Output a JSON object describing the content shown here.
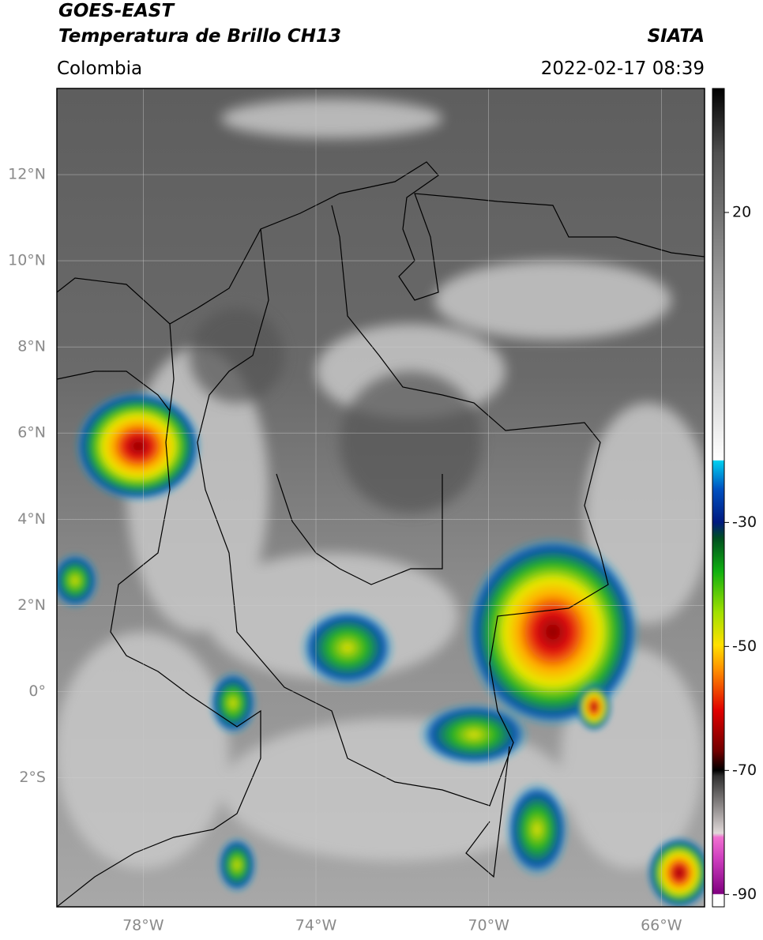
{
  "header": {
    "title": "GOES-EAST",
    "subtitle": "Temperatura de Brillo CH13",
    "source": "SIATA",
    "region": "Colombia",
    "datetime": "2022-02-17 08:39"
  },
  "map": {
    "lonlim": [
      -80,
      -65
    ],
    "latlim": [
      -5,
      14
    ],
    "lon_ticks": [
      {
        "value": -78,
        "label": "78°W"
      },
      {
        "value": -74,
        "label": "74°W"
      },
      {
        "value": -70,
        "label": "70°W"
      },
      {
        "value": -66,
        "label": "66°W"
      }
    ],
    "lat_ticks": [
      {
        "value": 12,
        "label": "12°N"
      },
      {
        "value": 10,
        "label": "10°N"
      },
      {
        "value": 8,
        "label": "8°N"
      },
      {
        "value": 6,
        "label": "6°N"
      },
      {
        "value": 4,
        "label": "4°N"
      },
      {
        "value": 2,
        "label": "2°N"
      },
      {
        "value": 0,
        "label": "0°"
      },
      {
        "value": -2,
        "label": "2°S"
      }
    ],
    "grid": true
  },
  "colorbar": {
    "lim": [
      -92,
      40
    ],
    "ticks": [
      20,
      -30,
      -50,
      -70,
      -90
    ]
  }
}
